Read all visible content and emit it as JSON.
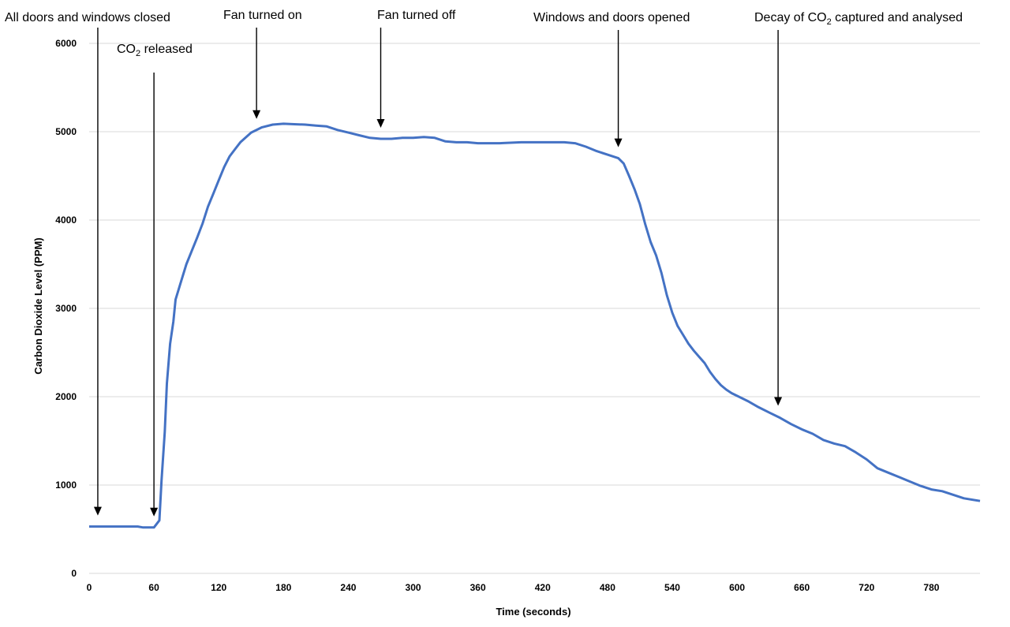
{
  "chart_data": {
    "type": "line",
    "title": "",
    "xlabel": "Time (seconds)",
    "ylabel": "Carbon Dioxide Level  (PPM)",
    "xlim": [
      0,
      825
    ],
    "ylim": [
      0,
      6000
    ],
    "x_ticks": [
      0,
      60,
      120,
      180,
      240,
      300,
      360,
      420,
      480,
      540,
      600,
      660,
      720,
      780
    ],
    "y_ticks": [
      0,
      1000,
      2000,
      3000,
      4000,
      5000,
      6000
    ],
    "grid": "horizontal",
    "legend": "none",
    "series_color": "#4472c4",
    "series": [
      {
        "x": [
          0,
          20,
          45,
          50,
          60,
          65,
          67,
          70,
          72,
          75,
          78,
          80,
          85,
          90,
          95,
          100,
          105,
          110,
          115,
          120,
          125,
          130,
          135,
          140,
          150,
          160,
          170,
          180,
          190,
          200,
          210,
          220,
          230,
          240,
          250,
          260,
          270,
          280,
          290,
          300,
          310,
          320,
          330,
          340,
          350,
          360,
          380,
          400,
          420,
          440,
          450,
          460,
          470,
          480,
          490,
          495,
          500,
          505,
          510,
          515,
          520,
          525,
          530,
          535,
          540,
          545,
          550,
          555,
          560,
          565,
          570,
          575,
          580,
          585,
          590,
          595,
          600,
          610,
          620,
          630,
          640,
          650,
          660,
          670,
          680,
          690,
          700,
          710,
          720,
          730,
          740,
          750,
          760,
          770,
          780,
          790,
          800,
          810,
          825
        ],
        "y": [
          530,
          530,
          530,
          520,
          520,
          600,
          1050,
          1600,
          2150,
          2600,
          2850,
          3100,
          3300,
          3500,
          3650,
          3800,
          3960,
          4150,
          4300,
          4450,
          4600,
          4720,
          4800,
          4880,
          4990,
          5050,
          5080,
          5090,
          5085,
          5080,
          5070,
          5060,
          5020,
          4990,
          4960,
          4930,
          4920,
          4920,
          4930,
          4930,
          4940,
          4930,
          4890,
          4880,
          4880,
          4870,
          4870,
          4880,
          4880,
          4880,
          4870,
          4830,
          4780,
          4740,
          4700,
          4640,
          4500,
          4350,
          4180,
          3950,
          3750,
          3600,
          3400,
          3150,
          2950,
          2800,
          2700,
          2600,
          2520,
          2450,
          2380,
          2280,
          2200,
          2130,
          2080,
          2040,
          2010,
          1950,
          1880,
          1820,
          1760,
          1690,
          1630,
          1580,
          1510,
          1470,
          1440,
          1370,
          1290,
          1190,
          1140,
          1090,
          1040,
          990,
          950,
          930,
          890,
          850,
          820
        ]
      }
    ],
    "annotations": [
      {
        "text": "All doors and windows closed",
        "x": 8
      },
      {
        "text_main": "CO",
        "text_sub": "2",
        "text_rest": " released",
        "x": 60
      },
      {
        "text": "Fan turned on",
        "x": 155
      },
      {
        "text": "Fan turned off",
        "x": 270
      },
      {
        "text": "Windows and doors opened",
        "x": 490
      },
      {
        "text_main": "Decay of CO",
        "text_sub": "2",
        "text_rest": " captured and analysed",
        "x": 638
      }
    ]
  }
}
